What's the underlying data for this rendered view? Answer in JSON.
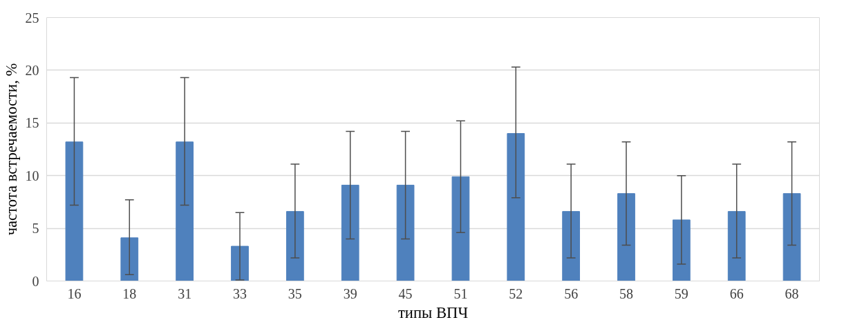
{
  "chart_data": {
    "type": "bar",
    "xlabel": "типы ВПЧ",
    "ylabel": "частота встречаемости, %",
    "categories": [
      "16",
      "18",
      "31",
      "33",
      "35",
      "39",
      "45",
      "51",
      "52",
      "56",
      "58",
      "59",
      "66",
      "68"
    ],
    "values": [
      13.2,
      4.1,
      13.2,
      3.3,
      6.6,
      9.1,
      9.1,
      9.9,
      14.0,
      6.6,
      8.3,
      5.8,
      6.6,
      8.3
    ],
    "errors": [
      [
        7.2,
        19.3
      ],
      [
        0.6,
        7.7
      ],
      [
        7.2,
        19.3
      ],
      [
        0.1,
        6.5
      ],
      [
        2.2,
        11.1
      ],
      [
        4.0,
        14.2
      ],
      [
        4.0,
        14.2
      ],
      [
        4.6,
        15.2
      ],
      [
        7.9,
        20.3
      ],
      [
        2.2,
        11.1
      ],
      [
        3.4,
        13.2
      ],
      [
        1.6,
        10.0
      ],
      [
        2.2,
        11.1
      ],
      [
        3.4,
        13.2
      ]
    ],
    "color": "#4f81bd",
    "ylim": [
      0,
      25
    ],
    "yticks": [
      0,
      5,
      10,
      15,
      20,
      25
    ],
    "grid": "y"
  }
}
